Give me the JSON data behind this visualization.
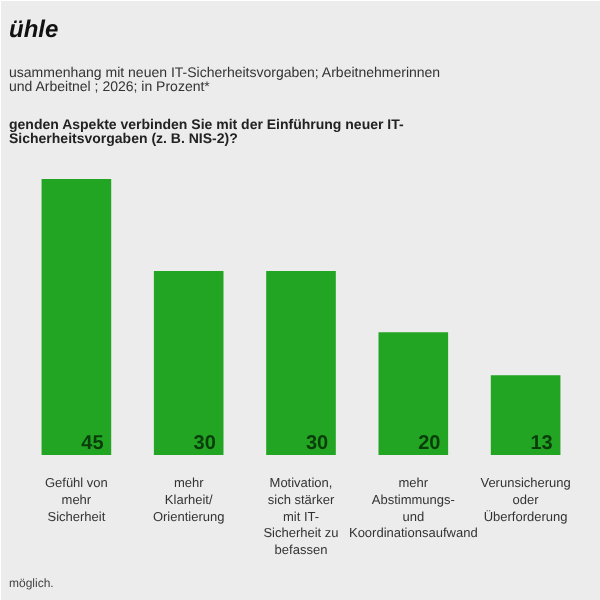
{
  "chart_data": {
    "type": "bar",
    "title": "ühle",
    "subtitle": "usammenhang mit neuen IT-Sicherheitsvorgaben; Arbeitnehmerinnen und Arbeitnel ; 2026; in Prozent*",
    "annotations": [
      "genden Aspekte verbinden Sie mit der Einführung neuer IT-Sicherheitsvorgaben (z. B. NIS-2)?",
      "möglich."
    ],
    "categories": [
      "Gefühl von mehr Sicherheit",
      "mehr Klarheit/ Orientierung",
      "Motivation, sich stärker mit IT-Sicherheit zu befassen",
      "mehr Abstimmungs- und Koordinationsaufwand",
      "Verunsicherung oder Überforderung"
    ],
    "values": [
      45,
      30,
      30,
      20,
      13
    ],
    "color": "#22a522",
    "data_labels": true
  }
}
